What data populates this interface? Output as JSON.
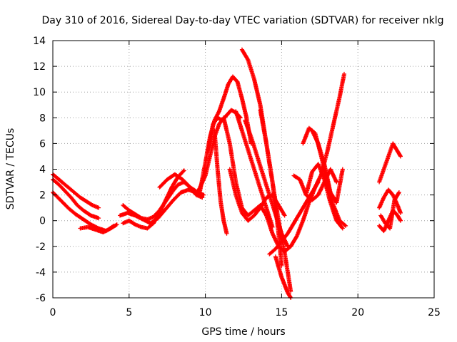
{
  "chart_data": {
    "type": "scatter",
    "title": "Day 310 of 2016, Sidereal Day-to-day VTEC variation (SDTVAR) for receiver nklg",
    "xlabel": "GPS time / hours",
    "ylabel": "SDTVAR / TECUs",
    "xlim": [
      0,
      25
    ],
    "ylim": [
      -6,
      14
    ],
    "xticks": [
      0,
      5,
      10,
      15,
      20,
      25
    ],
    "yticks": [
      -6,
      -4,
      -2,
      0,
      2,
      4,
      6,
      8,
      10,
      12,
      14
    ],
    "grid": true,
    "legend": "none",
    "marker": "+",
    "color": "#ff0000",
    "series": [
      {
        "x": [
          0,
          0.3,
          0.6,
          1.0,
          1.4,
          1.8,
          2.2,
          2.6,
          3.0
        ],
        "y": [
          3.6,
          3.3,
          3.0,
          2.6,
          2.2,
          1.8,
          1.5,
          1.2,
          1.0
        ]
      },
      {
        "x": [
          0,
          0.4,
          0.8,
          1.2,
          1.6,
          2.0,
          2.5,
          3.0
        ],
        "y": [
          3.2,
          2.8,
          2.3,
          1.8,
          1.2,
          0.8,
          0.4,
          0.2
        ]
      },
      {
        "x": [
          0,
          0.5,
          1.0,
          1.5,
          2.0,
          2.5,
          3.0,
          3.5,
          4.0
        ],
        "y": [
          2.2,
          1.6,
          1.0,
          0.5,
          0.1,
          -0.3,
          -0.6,
          -0.8,
          -0.4
        ]
      },
      {
        "x": [
          1.8,
          2.3,
          2.8,
          3.3,
          3.8,
          4.2
        ],
        "y": [
          -0.6,
          -0.5,
          -0.7,
          -0.9,
          -0.6,
          -0.3
        ]
      },
      {
        "x": [
          4.6,
          5.0,
          5.4,
          5.8,
          6.2,
          6.6,
          7.0,
          7.4,
          7.8,
          8.2,
          8.6,
          9.0,
          9.4,
          9.8
        ],
        "y": [
          1.2,
          0.8,
          0.5,
          0.2,
          0.1,
          0.3,
          0.8,
          1.5,
          2.2,
          2.8,
          3.0,
          2.6,
          2.0,
          1.8
        ]
      },
      {
        "x": [
          4.6,
          5.0,
          5.4,
          5.8,
          6.2,
          6.6,
          7.0,
          7.4,
          7.8,
          8.2,
          8.6
        ],
        "y": [
          -0.2,
          0.0,
          -0.3,
          -0.5,
          -0.6,
          -0.2,
          0.6,
          1.6,
          2.6,
          3.4,
          3.9
        ]
      },
      {
        "x": [
          4.4,
          4.9,
          5.4,
          5.9,
          6.4,
          6.9,
          7.4,
          7.9,
          8.4,
          8.9,
          9.4,
          9.9
        ],
        "y": [
          0.4,
          0.6,
          0.4,
          0.1,
          -0.2,
          0.2,
          0.9,
          1.6,
          2.2,
          2.4,
          2.2,
          2.0
        ]
      },
      {
        "x": [
          7.0,
          7.5,
          8.0,
          8.5,
          9.0,
          9.5,
          10.0,
          10.3,
          10.6,
          10.9,
          11.2
        ],
        "y": [
          2.6,
          3.2,
          3.6,
          3.2,
          2.6,
          2.2,
          3.5,
          5.0,
          6.5,
          7.5,
          8.0
        ]
      },
      {
        "x": [
          9.6,
          10.0,
          10.3,
          10.6,
          10.9,
          11.2,
          11.5,
          11.8,
          12.1,
          12.4,
          12.7,
          13.0
        ],
        "y": [
          2.0,
          4.5,
          6.5,
          7.8,
          8.5,
          9.5,
          10.6,
          11.2,
          10.8,
          9.5,
          8.0,
          6.0
        ]
      },
      {
        "x": [
          10.2,
          10.5,
          10.8,
          11.1,
          11.4,
          11.7,
          12.0,
          12.3
        ],
        "y": [
          5.5,
          7.5,
          8.0,
          7.8,
          8.2,
          8.6,
          8.4,
          8.0
        ]
      },
      {
        "x": [
          10.6,
          10.8,
          11.0,
          11.2,
          11.4
        ],
        "y": [
          7.0,
          4.0,
          1.5,
          0.0,
          -1.0
        ]
      },
      {
        "x": [
          11.2,
          11.6,
          12.0,
          12.4,
          12.8,
          13.2,
          13.6,
          14.0,
          14.4,
          14.8,
          15.2,
          15.6
        ],
        "y": [
          8.0,
          6.0,
          3.0,
          1.0,
          0.4,
          0.8,
          1.2,
          0.4,
          -1.0,
          -2.0,
          -2.4,
          -2.0
        ]
      },
      {
        "x": [
          11.6,
          12.0,
          12.4,
          12.8,
          13.2,
          13.6,
          14.0,
          14.4,
          14.8,
          15.2
        ],
        "y": [
          4.0,
          2.0,
          0.6,
          0.0,
          0.4,
          1.0,
          1.8,
          2.0,
          1.2,
          0.4
        ]
      },
      {
        "x": [
          12.4,
          12.8,
          13.2,
          13.6,
          14.0,
          14.4,
          14.8,
          15.2,
          15.6
        ],
        "y": [
          13.3,
          12.5,
          11.0,
          9.0,
          6.0,
          3.0,
          0.0,
          -2.5,
          -5.5
        ]
      },
      {
        "x": [
          12.0,
          12.4,
          12.8,
          13.2,
          13.6,
          14.0,
          14.4
        ],
        "y": [
          8.5,
          7.0,
          5.5,
          4.0,
          2.5,
          1.0,
          -0.5
        ]
      },
      {
        "x": [
          12.6,
          13.0,
          13.4,
          13.8,
          14.2,
          14.6,
          15.0,
          15.4
        ],
        "y": [
          7.8,
          6.5,
          5.0,
          3.5,
          2.0,
          0.5,
          -1.0,
          -2.0
        ]
      },
      {
        "x": [
          13.6,
          14.0,
          14.4,
          14.8,
          15.0
        ],
        "y": [
          8.6,
          6.0,
          3.0,
          -1.0,
          -3.5
        ]
      },
      {
        "x": [
          14.6,
          14.8,
          15.0,
          15.2,
          15.4,
          15.6
        ],
        "y": [
          -2.8,
          -3.6,
          -4.4,
          -5.0,
          -5.6,
          -6.0
        ]
      },
      {
        "x": [
          14.2,
          14.6,
          15.0,
          15.4,
          15.8,
          16.2,
          16.6,
          17.0,
          17.4
        ],
        "y": [
          -2.6,
          -2.2,
          -1.6,
          -1.0,
          -0.2,
          0.6,
          1.4,
          2.2,
          3.0
        ]
      },
      {
        "x": [
          15.6,
          16.0,
          16.4,
          16.8,
          17.2,
          17.6,
          18.0,
          18.4,
          18.8,
          19.1
        ],
        "y": [
          -2.0,
          -1.2,
          0.0,
          1.4,
          2.6,
          3.6,
          5.4,
          7.5,
          9.6,
          11.4
        ]
      },
      {
        "x": [
          15.8,
          16.2,
          16.6,
          17.0,
          17.4,
          17.8,
          18.2,
          18.6
        ],
        "y": [
          3.5,
          3.2,
          2.0,
          1.6,
          2.0,
          3.0,
          4.0,
          3.0
        ]
      },
      {
        "x": [
          16.4,
          16.8,
          17.2,
          17.6,
          18.0,
          18.4,
          18.8,
          19.2
        ],
        "y": [
          6.0,
          7.2,
          6.8,
          5.0,
          3.0,
          1.2,
          0.0,
          -0.4
        ]
      },
      {
        "x": [
          16.6,
          17.0,
          17.4,
          17.8,
          18.2,
          18.6,
          19.0
        ],
        "y": [
          2.0,
          3.8,
          4.4,
          3.2,
          1.4,
          0.0,
          -0.6
        ]
      },
      {
        "x": [
          17.0,
          17.4,
          17.8,
          18.2,
          18.6,
          19.0
        ],
        "y": [
          7.0,
          6.0,
          4.4,
          2.2,
          1.4,
          4.0
        ]
      },
      {
        "x": [
          21.4,
          21.7,
          22.0,
          22.3,
          22.6,
          22.8
        ],
        "y": [
          3.0,
          4.0,
          5.0,
          6.0,
          5.4,
          5.0
        ]
      },
      {
        "x": [
          21.4,
          21.7,
          22.0,
          22.3,
          22.6,
          22.8
        ],
        "y": [
          1.0,
          1.8,
          2.4,
          2.0,
          1.2,
          0.6
        ]
      },
      {
        "x": [
          21.4,
          21.7,
          22.0,
          22.3,
          22.6,
          22.8
        ],
        "y": [
          -0.4,
          -0.8,
          0.0,
          0.8,
          0.4,
          0.0
        ]
      },
      {
        "x": [
          21.5,
          21.8,
          22.1,
          22.4,
          22.7
        ],
        "y": [
          0.4,
          -0.2,
          -0.6,
          1.6,
          2.2
        ]
      }
    ]
  }
}
